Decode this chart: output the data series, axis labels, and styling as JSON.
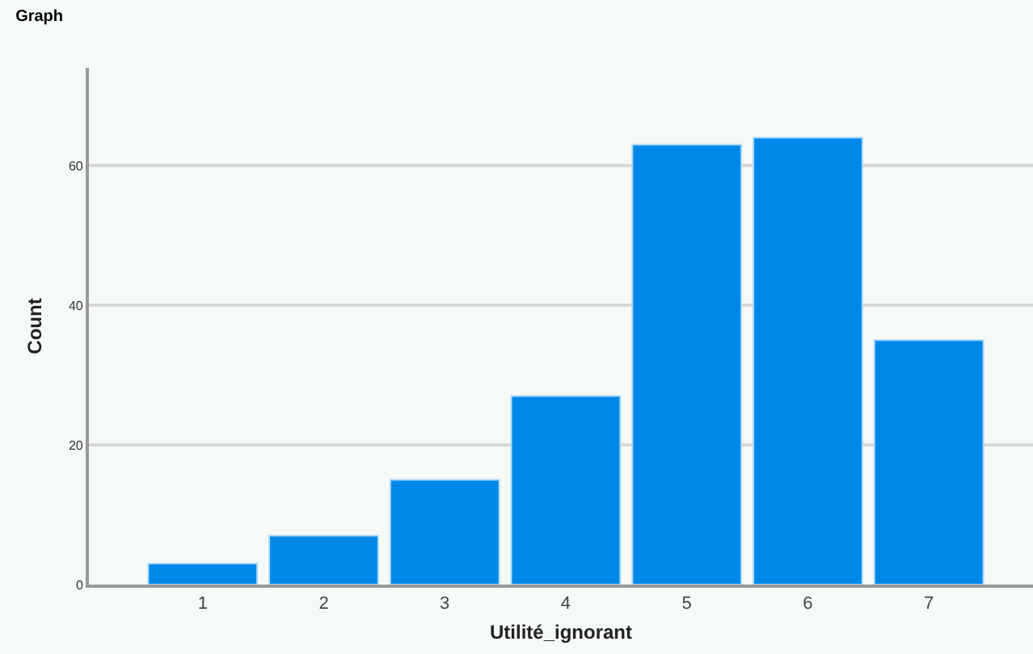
{
  "chart_data": {
    "type": "bar",
    "title": "Graph",
    "xlabel": "Utilité_ignorant",
    "ylabel": "Count",
    "categories": [
      "1",
      "2",
      "3",
      "4",
      "5",
      "6",
      "7"
    ],
    "values": [
      3,
      7,
      15,
      27,
      63,
      64,
      35
    ],
    "color": "#0088e8",
    "ylim": [
      0,
      74
    ],
    "yticks": [
      0,
      20,
      40,
      60
    ],
    "grid": "y",
    "legend": false
  }
}
